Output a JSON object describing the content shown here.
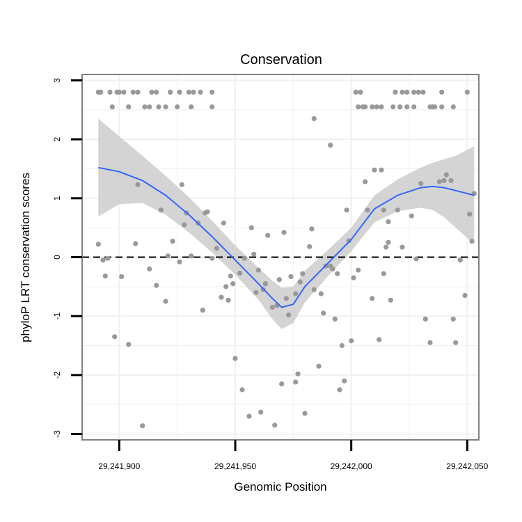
{
  "chart_data": {
    "type": "scatter",
    "title": "Conservation",
    "xlabel": "Genomic Position",
    "ylabel": "phyloP LRT conservation scores",
    "xlim": [
      29241884,
      29242055
    ],
    "ylim": [
      -3.1,
      3.1
    ],
    "x_ticks": [
      29241900,
      29241950,
      29242000,
      29242050
    ],
    "x_tick_labels": [
      "29,241,900",
      "29,241,950",
      "29,242,000",
      "29,242,050"
    ],
    "y_ticks": [
      3,
      2,
      1,
      0,
      -1,
      -2,
      -3
    ],
    "y_tick_labels": [
      "3",
      "2",
      "1",
      "0",
      "-1",
      "-2",
      "-3"
    ],
    "grid": true,
    "reference_line": {
      "y": 0,
      "style": "dashed"
    },
    "colors": {
      "points": "#999999",
      "smooth": "#3366ff",
      "band": "#cccccc",
      "panel_border": "#808080",
      "grid": "#f0f0f0"
    },
    "points": [
      [
        29241891,
        2.8
      ],
      [
        29241892,
        2.8
      ],
      [
        29241896,
        2.8
      ],
      [
        29241899,
        2.8
      ],
      [
        29241900,
        2.8
      ],
      [
        29241902,
        2.8
      ],
      [
        29241906,
        2.8
      ],
      [
        29241908,
        2.8
      ],
      [
        29241914,
        2.8
      ],
      [
        29241916,
        2.8
      ],
      [
        29241922,
        2.8
      ],
      [
        29241926,
        2.8
      ],
      [
        29241930,
        2.8
      ],
      [
        29241932,
        2.8
      ],
      [
        29241935,
        2.8
      ],
      [
        29241940,
        2.8
      ],
      [
        29241897,
        2.55
      ],
      [
        29241904,
        2.55
      ],
      [
        29241911,
        2.55
      ],
      [
        29241913,
        2.55
      ],
      [
        29241917,
        2.55
      ],
      [
        29241920,
        2.55
      ],
      [
        29241925,
        2.55
      ],
      [
        29241931,
        2.55
      ],
      [
        29241940,
        2.55
      ],
      [
        29242002,
        2.8
      ],
      [
        29242004,
        2.8
      ],
      [
        29242019,
        2.8
      ],
      [
        29242022,
        2.8
      ],
      [
        29242024,
        2.8
      ],
      [
        29242027,
        2.8
      ],
      [
        29242029,
        2.8
      ],
      [
        29242031,
        2.8
      ],
      [
        29242039,
        2.8
      ],
      [
        29242050,
        2.8
      ],
      [
        29242003,
        2.55
      ],
      [
        29242005,
        2.55
      ],
      [
        29242006,
        2.55
      ],
      [
        29242009,
        2.55
      ],
      [
        29242011,
        2.55
      ],
      [
        29242013,
        2.55
      ],
      [
        29242018,
        2.55
      ],
      [
        29242021,
        2.55
      ],
      [
        29242024,
        2.55
      ],
      [
        29242027,
        2.55
      ],
      [
        29242034,
        2.55
      ],
      [
        29242035,
        2.55
      ],
      [
        29242036,
        2.55
      ],
      [
        29242039,
        2.55
      ],
      [
        29242044,
        2.55
      ],
      [
        29241984,
        2.35
      ],
      [
        29241991,
        1.9
      ],
      [
        29242010,
        1.48
      ],
      [
        29242006,
        1.28
      ],
      [
        29242014,
        0.8
      ],
      [
        29242016,
        0.6
      ],
      [
        29242026,
        0.7
      ],
      [
        29242030,
        1.25
      ],
      [
        29242032,
        -1.05
      ],
      [
        29242038,
        1.28
      ],
      [
        29242040,
        1.3
      ],
      [
        29242041,
        1.4
      ],
      [
        29242043,
        1.3
      ],
      [
        29242044,
        -1.05
      ],
      [
        29242047,
        -0.05
      ],
      [
        29242049,
        -0.65
      ],
      [
        29242051,
        0.73
      ],
      [
        29242052,
        0.27
      ],
      [
        29242053,
        1.08
      ],
      [
        29242034,
        -1.45
      ],
      [
        29242045,
        -1.45
      ],
      [
        29241891,
        0.22
      ],
      [
        29241893,
        -0.05
      ],
      [
        29241894,
        -0.32
      ],
      [
        29241895,
        -0.02
      ],
      [
        29241898,
        -1.35
      ],
      [
        29241901,
        -0.33
      ],
      [
        29241904,
        -1.48
      ],
      [
        29241907,
        0.23
      ],
      [
        29241908,
        1.23
      ],
      [
        29241910,
        -2.86
      ],
      [
        29241913,
        -0.2
      ],
      [
        29241916,
        -0.48
      ],
      [
        29241918,
        0.8
      ],
      [
        29241920,
        -0.75
      ],
      [
        29241921,
        0.02
      ],
      [
        29241923,
        0.27
      ],
      [
        29241926,
        -0.08
      ],
      [
        29241927,
        1.23
      ],
      [
        29241928,
        0.55
      ],
      [
        29241929,
        0.75
      ],
      [
        29241931,
        0.02
      ],
      [
        29241934,
        0.58
      ],
      [
        29241936,
        -0.9
      ],
      [
        29241937,
        0.75
      ],
      [
        29241938,
        0.77
      ],
      [
        29241940,
        -0.02
      ],
      [
        29241942,
        0.15
      ],
      [
        29241944,
        -0.68
      ],
      [
        29241945,
        0.58
      ],
      [
        29241946,
        -0.5
      ],
      [
        29241947,
        -0.73
      ],
      [
        29241948,
        -0.32
      ],
      [
        29241949,
        -0.45
      ],
      [
        29241950,
        -1.72
      ],
      [
        29241952,
        -0.27
      ],
      [
        29241953,
        -2.25
      ],
      [
        29241954,
        -0.02
      ],
      [
        29241956,
        -2.7
      ],
      [
        29241957,
        0.5
      ],
      [
        29241958,
        0.05
      ],
      [
        29241959,
        -0.6
      ],
      [
        29241960,
        -0.22
      ],
      [
        29241961,
        -2.63
      ],
      [
        29241962,
        -0.55
      ],
      [
        29241963,
        -0.45
      ],
      [
        29241964,
        0.37
      ],
      [
        29241966,
        -0.85
      ],
      [
        29241967,
        -2.85
      ],
      [
        29241968,
        -0.82
      ],
      [
        29241969,
        -0.38
      ],
      [
        29241970,
        -2.15
      ],
      [
        29241971,
        0.42
      ],
      [
        29241972,
        -0.7
      ],
      [
        29241973,
        -0.98
      ],
      [
        29241974,
        -0.33
      ],
      [
        29241976,
        -0.62
      ],
      [
        29241976,
        -2.12
      ],
      [
        29241977,
        -1.98
      ],
      [
        29241978,
        -0.42
      ],
      [
        29241979,
        -0.28
      ],
      [
        29241980,
        -2.65
      ],
      [
        29241982,
        0.18
      ],
      [
        29241983,
        0.48
      ],
      [
        29241984,
        -0.55
      ],
      [
        29241986,
        -1.85
      ],
      [
        29241987,
        -0.62
      ],
      [
        29241988,
        -0.95
      ],
      [
        29241989,
        -0.15
      ],
      [
        29241991,
        -0.15
      ],
      [
        29241992,
        -0.2
      ],
      [
        29241993,
        -1.05
      ],
      [
        29241994,
        -0.28
      ],
      [
        29241995,
        -2.25
      ],
      [
        29241996,
        -1.5
      ],
      [
        29241997,
        -2.1
      ],
      [
        29241998,
        0.8
      ],
      [
        29241999,
        0.28
      ],
      [
        29242000,
        -1.42
      ],
      [
        29242001,
        -0.35
      ],
      [
        29242003,
        -0.22
      ],
      [
        29242007,
        0.8
      ],
      [
        29242009,
        -0.7
      ],
      [
        29242012,
        -1.4
      ],
      [
        29242013,
        1.48
      ],
      [
        29242014,
        -0.28
      ],
      [
        29242015,
        0.17
      ],
      [
        29242016,
        0.25
      ],
      [
        29242017,
        -0.73
      ],
      [
        29242020,
        0.8
      ],
      [
        29242022,
        0.17
      ],
      [
        29242028,
        -0.03
      ]
    ],
    "smooth": {
      "x": [
        29241891,
        29241900,
        29241910,
        29241920,
        29241930,
        29241940,
        29241950,
        29241960,
        29241966,
        29241970,
        29241975,
        29241980,
        29241990,
        29242000,
        29242010,
        29242020,
        29242030,
        29242035,
        29242040,
        29242045,
        29242053
      ],
      "y": [
        1.52,
        1.45,
        1.3,
        1.05,
        0.72,
        0.35,
        -0.05,
        -0.45,
        -0.7,
        -0.85,
        -0.8,
        -0.5,
        -0.1,
        0.3,
        0.82,
        1.05,
        1.18,
        1.2,
        1.18,
        1.13,
        1.05
      ],
      "upper": [
        2.35,
        2.05,
        1.72,
        1.38,
        1.02,
        0.62,
        0.2,
        -0.18,
        -0.4,
        -0.52,
        -0.5,
        -0.23,
        0.12,
        0.5,
        1.05,
        1.32,
        1.52,
        1.6,
        1.66,
        1.72,
        1.88
      ],
      "lower": [
        0.69,
        0.9,
        0.92,
        0.72,
        0.42,
        0.08,
        -0.3,
        -0.72,
        -1.05,
        -1.22,
        -1.12,
        -0.77,
        -0.32,
        0.1,
        0.59,
        0.78,
        0.84,
        0.8,
        0.68,
        0.5,
        0.22
      ]
    }
  }
}
